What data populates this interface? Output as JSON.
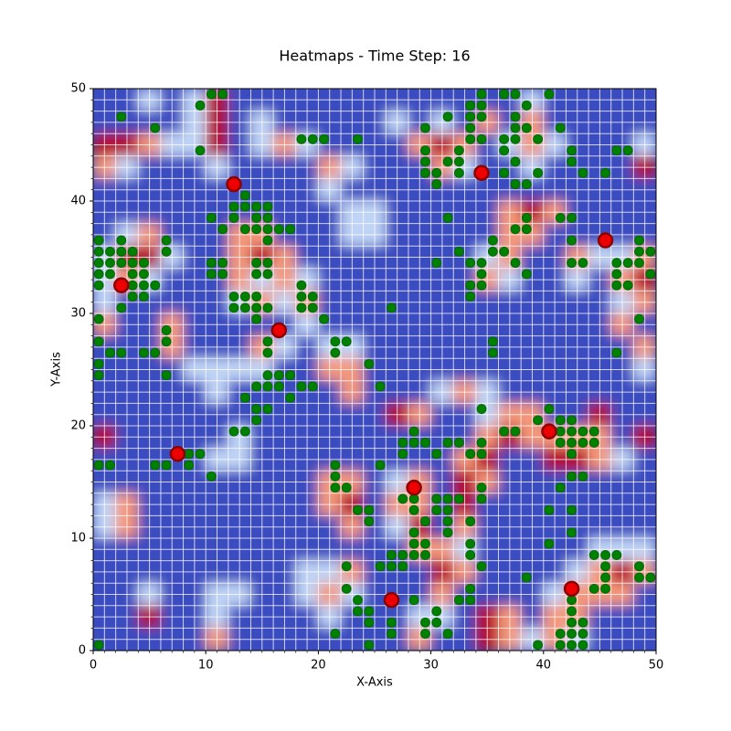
{
  "chart_data": {
    "type": "heatmap-scatter",
    "title": "Heatmaps - Time Step: 16",
    "xlabel": "X-Axis",
    "ylabel": "Y-Axis",
    "xlim": [
      0,
      50
    ],
    "ylim": [
      0,
      50
    ],
    "xticks": [
      0,
      10,
      20,
      30,
      40,
      50
    ],
    "yticks": [
      0,
      10,
      20,
      30,
      40,
      50
    ],
    "grid_cells": 50,
    "zlim": [
      0,
      3
    ],
    "colors": [
      "#3b4cc0",
      "#c0d4f5",
      "#f4987a",
      "#b40426"
    ],
    "z": [
      [
        0,
        0,
        1,
        0,
        1,
        3,
        0,
        0,
        0,
        0,
        0,
        0,
        0,
        0,
        0,
        0,
        0,
        0,
        0,
        1,
        0,
        0,
        0,
        0,
        0
      ],
      [
        0,
        0,
        0,
        0,
        1,
        3,
        0,
        1,
        0,
        0,
        0,
        0,
        0,
        1,
        0,
        1,
        0,
        2,
        0,
        2,
        0,
        0,
        0,
        0,
        0
      ],
      [
        3,
        3,
        2,
        1,
        1,
        3,
        0,
        1,
        2,
        1,
        0,
        0,
        0,
        0,
        2,
        3,
        2,
        0,
        1,
        2,
        1,
        0,
        0,
        0,
        1
      ],
      [
        2,
        1,
        0,
        0,
        0,
        1,
        0,
        0,
        0,
        0,
        2,
        1,
        0,
        0,
        0,
        2,
        1,
        0,
        0,
        1,
        0,
        0,
        0,
        0,
        3
      ],
      [
        0,
        0,
        0,
        0,
        0,
        0,
        0,
        0,
        0,
        0,
        1,
        0,
        0,
        0,
        0,
        0,
        0,
        0,
        0,
        0,
        0,
        0,
        0,
        0,
        0
      ],
      [
        0,
        0,
        0,
        0,
        0,
        0,
        0,
        0,
        0,
        0,
        0,
        1,
        1,
        0,
        0,
        0,
        0,
        0,
        2,
        3,
        2,
        0,
        0,
        0,
        0
      ],
      [
        0,
        1,
        2,
        0,
        0,
        0,
        2,
        2,
        0,
        0,
        0,
        1,
        1,
        0,
        0,
        0,
        0,
        0,
        2,
        2,
        0,
        0,
        0,
        0,
        0
      ],
      [
        1,
        3,
        3,
        1,
        0,
        0,
        2,
        3,
        2,
        0,
        0,
        0,
        0,
        0,
        0,
        0,
        0,
        1,
        2,
        0,
        0,
        2,
        1,
        1,
        2
      ],
      [
        1,
        2,
        1,
        0,
        0,
        0,
        2,
        1,
        2,
        1,
        0,
        0,
        0,
        0,
        0,
        0,
        0,
        2,
        1,
        0,
        0,
        1,
        0,
        2,
        3
      ],
      [
        1,
        0,
        0,
        0,
        0,
        0,
        1,
        2,
        1,
        2,
        0,
        0,
        0,
        0,
        0,
        0,
        0,
        0,
        0,
        0,
        0,
        0,
        0,
        1,
        2
      ],
      [
        2,
        0,
        0,
        2,
        0,
        0,
        0,
        0,
        0,
        1,
        0,
        0,
        0,
        0,
        0,
        0,
        0,
        0,
        0,
        0,
        0,
        0,
        0,
        2,
        0
      ],
      [
        0,
        0,
        0,
        2,
        0,
        0,
        0,
        2,
        1,
        0,
        1,
        1,
        0,
        0,
        0,
        0,
        0,
        0,
        0,
        0,
        0,
        0,
        0,
        0,
        2
      ],
      [
        0,
        0,
        0,
        0,
        1,
        1,
        1,
        1,
        0,
        0,
        2,
        2,
        0,
        0,
        0,
        0,
        0,
        0,
        0,
        0,
        0,
        0,
        0,
        0,
        1
      ],
      [
        0,
        0,
        0,
        0,
        0,
        1,
        0,
        0,
        0,
        0,
        0,
        2,
        0,
        0,
        0,
        1,
        2,
        1,
        0,
        0,
        0,
        0,
        0,
        0,
        0
      ],
      [
        0,
        0,
        0,
        0,
        0,
        0,
        0,
        0,
        0,
        0,
        0,
        0,
        0,
        3,
        2,
        0,
        0,
        1,
        2,
        2,
        0,
        0,
        3,
        0,
        0
      ],
      [
        3,
        0,
        0,
        0,
        0,
        0,
        1,
        0,
        0,
        0,
        0,
        0,
        0,
        0,
        0,
        0,
        0,
        2,
        3,
        2,
        2,
        2,
        2,
        0,
        3
      ],
      [
        0,
        0,
        0,
        0,
        0,
        1,
        1,
        0,
        0,
        0,
        0,
        0,
        0,
        0,
        0,
        0,
        2,
        3,
        0,
        0,
        3,
        3,
        2,
        1,
        0
      ],
      [
        0,
        0,
        0,
        0,
        0,
        0,
        0,
        0,
        0,
        0,
        2,
        2,
        0,
        1,
        2,
        0,
        3,
        2,
        0,
        0,
        0,
        0,
        0,
        0,
        0
      ],
      [
        1,
        2,
        0,
        0,
        0,
        0,
        0,
        0,
        0,
        0,
        2,
        3,
        0,
        2,
        2,
        0,
        3,
        0,
        0,
        0,
        0,
        0,
        0,
        0,
        0
      ],
      [
        1,
        2,
        0,
        0,
        0,
        0,
        0,
        0,
        0,
        0,
        0,
        2,
        0,
        1,
        3,
        0,
        2,
        0,
        0,
        0,
        0,
        0,
        0,
        0,
        0
      ],
      [
        0,
        0,
        0,
        0,
        0,
        0,
        0,
        0,
        0,
        0,
        0,
        0,
        0,
        0,
        2,
        2,
        1,
        0,
        0,
        0,
        0,
        0,
        1,
        1,
        1
      ],
      [
        0,
        0,
        0,
        0,
        0,
        0,
        0,
        0,
        0,
        1,
        1,
        2,
        0,
        0,
        0,
        3,
        2,
        0,
        0,
        0,
        0,
        1,
        2,
        3,
        2
      ],
      [
        0,
        0,
        1,
        0,
        0,
        1,
        1,
        0,
        0,
        1,
        2,
        1,
        0,
        0,
        0,
        2,
        0,
        0,
        0,
        0,
        1,
        2,
        2,
        2,
        0
      ],
      [
        0,
        0,
        3,
        0,
        0,
        1,
        0,
        0,
        0,
        0,
        1,
        0,
        0,
        0,
        1,
        1,
        0,
        3,
        2,
        0,
        2,
        2,
        0,
        0,
        0
      ],
      [
        0,
        0,
        0,
        0,
        0,
        2,
        0,
        0,
        0,
        0,
        0,
        0,
        0,
        0,
        2,
        0,
        0,
        3,
        2,
        1,
        2,
        1,
        0,
        0,
        0
      ]
    ],
    "series": [
      {
        "color": "#008000",
        "edgecolor": "#006400",
        "x": [
          10.5,
          11.5,
          9.5,
          9.5,
          2.5,
          5.5,
          34.5,
          34.5,
          33.5,
          33.5,
          34.5,
          36.5,
          37.5,
          40.5,
          38.5,
          37.5,
          37.5,
          38.5,
          41.5,
          31.5,
          29.5,
          33.5,
          33.5,
          34.5,
          36.5,
          37.5,
          39.5,
          36.5,
          37.5,
          29.5,
          32.5,
          29.5,
          31.5,
          32.5,
          29.5,
          30.5,
          32.5,
          30.5,
          36.5,
          37.5,
          38.5,
          39.5,
          42.5,
          42.5,
          43.5,
          45.5,
          46.5,
          47.5,
          23.5,
          18.5,
          19.5,
          20.5,
          13.5,
          12.5,
          13.5,
          14.5,
          15.5,
          10.5,
          12.5,
          14.5,
          15.5,
          11.5,
          13.5,
          14.5,
          15.5,
          16.5,
          17.5,
          15.5,
          31.5,
          38.5,
          37.5,
          38.5,
          41.5,
          42.5,
          42.5,
          35.5,
          35.5,
          36.5,
          32.5,
          37.5,
          42.5,
          43.5,
          33.5,
          34.5,
          30.5,
          34.5,
          38.5,
          33.5,
          34.5,
          33.5,
          0.5,
          2.5,
          6.5,
          0.5,
          1.5,
          2.5,
          3.5,
          6.5,
          0.5,
          1.5,
          2.5,
          3.5,
          4.5,
          10.5,
          11.5,
          0.5,
          1.5,
          3.5,
          4.5,
          10.5,
          11.5,
          0.5,
          3.5,
          4.5,
          5.5,
          3.5,
          4.5,
          2.5,
          0.5,
          14.5,
          15.5,
          14.5,
          15.5,
          18.5,
          12.5,
          13.5,
          14.5,
          18.5,
          19.5,
          12.5,
          13.5,
          14.5,
          15.5,
          18.5,
          19.5,
          14.5,
          20.5,
          6.5,
          6.5,
          0.5,
          15.5,
          21.5,
          22.5,
          1.5,
          2.5,
          4.5,
          5.5,
          15.5,
          21.5,
          0.5,
          24.5,
          0.5,
          6.5,
          15.5,
          16.5,
          17.5,
          14.5,
          15.5,
          16.5,
          18.5,
          19.5,
          25.5,
          13.5,
          17.5,
          14.5,
          15.5,
          14.5,
          46.5,
          47.5,
          48.5,
          48.5,
          49.5,
          48.5,
          46.5,
          49.5,
          46.5,
          47.5,
          48.5,
          46.5,
          26.5,
          35.5,
          35.5,
          13.5,
          12.5,
          36.5,
          37.5,
          39.5,
          40.5,
          41.5,
          42.5,
          41.5,
          42.5,
          43.5,
          44.5,
          41.5,
          42.5,
          43.5,
          44.5,
          42.5,
          34.5,
          28.5,
          27.5,
          28.5,
          29.5,
          31.5,
          32.5,
          34.5,
          27.5,
          30.5,
          33.5,
          34.5,
          8.5,
          9.5,
          5.5,
          6.5,
          0.5,
          1.5,
          8.5,
          10.5,
          21.5,
          25.5,
          21.5,
          21.5,
          22.5,
          42.5,
          43.5,
          34.5,
          41.5,
          27.5,
          28.5,
          30.5,
          31.5,
          32.5,
          34.5,
          24.5,
          23.5,
          28.5,
          30.5,
          31.5,
          40.5,
          42.5,
          24.5,
          29.5,
          31.5,
          33.5,
          42.5,
          28.5,
          31.5,
          40.5,
          28.5,
          29.5,
          33.5,
          27.5,
          28.5,
          29.5,
          33.5,
          44.5,
          45.5,
          46.5,
          26.5,
          22.5,
          25.5,
          26.5,
          27.5,
          34.5,
          48.5,
          45.5,
          38.5,
          45.5,
          48.5,
          49.5,
          22.5,
          33.5,
          44.5,
          45.5,
          23.5,
          28.5,
          32.5,
          33.5,
          42.5,
          23.5,
          24.5,
          30.5,
          42.5,
          26.5,
          24.5,
          29.5,
          30.5,
          42.5,
          43.5,
          21.5,
          26.5,
          29.5,
          31.5,
          41.5,
          42.5,
          43.5,
          0.5,
          24.5,
          39.5,
          41.5,
          42.5,
          43.5
        ],
        "y": [
          49.5,
          49.5,
          48.5,
          44.5,
          47.5,
          46.5,
          49.5,
          48.5,
          48.5,
          47.5,
          47.5,
          49.5,
          49.5,
          49.5,
          48.5,
          47.5,
          46.5,
          46.5,
          46.5,
          47.5,
          46.5,
          46.5,
          45.5,
          45.5,
          45.5,
          45.5,
          45.5,
          44.5,
          43.5,
          44.5,
          44.5,
          43.5,
          43.5,
          43.5,
          42.5,
          42.5,
          42.5,
          41.5,
          42.5,
          41.5,
          41.5,
          42.5,
          44.5,
          43.5,
          42.5,
          42.5,
          44.5,
          44.5,
          45.5,
          45.5,
          45.5,
          45.5,
          40.5,
          39.5,
          39.5,
          39.5,
          39.5,
          38.5,
          38.5,
          38.5,
          38.5,
          37.5,
          37.5,
          37.5,
          37.5,
          37.5,
          37.5,
          36.5,
          38.5,
          38.5,
          37.5,
          37.5,
          38.5,
          38.5,
          36.5,
          36.5,
          35.5,
          35.5,
          35.5,
          34.5,
          34.5,
          34.5,
          34.5,
          34.5,
          34.5,
          33.5,
          33.5,
          32.5,
          32.5,
          31.5,
          36.5,
          36.5,
          36.5,
          35.5,
          35.5,
          35.5,
          35.5,
          35.5,
          34.5,
          34.5,
          34.5,
          34.5,
          34.5,
          34.5,
          34.5,
          33.5,
          33.5,
          33.5,
          33.5,
          33.5,
          33.5,
          32.5,
          32.5,
          32.5,
          32.5,
          31.5,
          31.5,
          30.5,
          29.5,
          34.5,
          34.5,
          33.5,
          33.5,
          32.5,
          31.5,
          31.5,
          31.5,
          31.5,
          31.5,
          30.5,
          30.5,
          30.5,
          30.5,
          30.5,
          30.5,
          29.5,
          29.5,
          28.5,
          27.5,
          27.5,
          27.5,
          27.5,
          27.5,
          26.5,
          26.5,
          26.5,
          26.5,
          26.5,
          26.5,
          25.5,
          25.5,
          24.5,
          24.5,
          24.5,
          24.5,
          24.5,
          23.5,
          23.5,
          23.5,
          23.5,
          23.5,
          23.5,
          22.5,
          22.5,
          21.5,
          21.5,
          20.5,
          34.5,
          34.5,
          34.5,
          35.5,
          35.5,
          36.5,
          33.5,
          33.5,
          32.5,
          32.5,
          29.5,
          26.5,
          30.5,
          27.5,
          26.5,
          19.5,
          19.5,
          19.5,
          19.5,
          20.5,
          21.5,
          20.5,
          20.5,
          19.5,
          19.5,
          19.5,
          19.5,
          18.5,
          18.5,
          18.5,
          18.5,
          17.5,
          21.5,
          19.5,
          18.5,
          18.5,
          18.5,
          18.5,
          18.5,
          18.5,
          17.5,
          17.5,
          17.5,
          17.5,
          17.5,
          17.5,
          16.5,
          16.5,
          16.5,
          16.5,
          16.5,
          15.5,
          16.5,
          16.5,
          15.5,
          14.5,
          14.5,
          15.5,
          15.5,
          14.5,
          14.5,
          13.5,
          13.5,
          13.5,
          13.5,
          13.5,
          13.5,
          12.5,
          12.5,
          12.5,
          12.5,
          12.5,
          12.5,
          12.5,
          11.5,
          11.5,
          11.5,
          11.5,
          10.5,
          10.5,
          10.5,
          9.5,
          9.5,
          9.5,
          9.5,
          8.5,
          8.5,
          8.5,
          8.5,
          8.5,
          8.5,
          8.5,
          8.5,
          7.5,
          7.5,
          7.5,
          7.5,
          7.5,
          7.5,
          7.5,
          6.5,
          6.5,
          6.5,
          6.5,
          5.5,
          5.5,
          5.5,
          5.5,
          4.5,
          4.5,
          4.5,
          4.5,
          4.5,
          3.5,
          3.5,
          3.5,
          3.5,
          2.5,
          2.5,
          2.5,
          2.5,
          2.5,
          2.5,
          1.5,
          1.5,
          1.5,
          1.5,
          1.5,
          1.5,
          1.5,
          0.5,
          0.5,
          0.5,
          0.5,
          0.5,
          0.5
        ]
      },
      {
        "color": "#ee0000",
        "edgecolor": "#8b0000",
        "x": [
          12.5,
          34.5,
          45.5,
          2.5,
          16.5,
          7.5,
          40.5,
          28.5,
          26.5,
          42.5
        ],
        "y": [
          41.5,
          42.5,
          36.5,
          32.5,
          28.5,
          17.5,
          19.5,
          14.5,
          4.5,
          5.5
        ]
      }
    ]
  }
}
